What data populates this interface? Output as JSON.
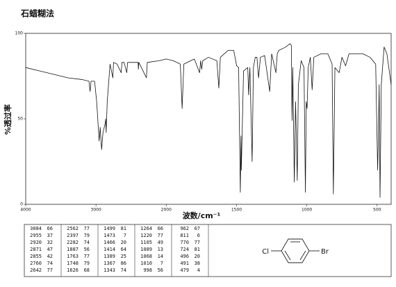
{
  "chart_data": {
    "type": "line",
    "title": "石蜡糊法",
    "x_label": "波数/cm⁻¹",
    "y_label": "%透过率",
    "xlim": [
      4000,
      400
    ],
    "xticks": [
      4000,
      3000,
      2000,
      1500,
      1000,
      500
    ],
    "ylim": [
      0,
      100
    ],
    "yticks": [
      0,
      50,
      100
    ],
    "color": "#111111",
    "x": [
      4000,
      3800,
      3600,
      3400,
      3200,
      3100,
      3084,
      3070,
      3020,
      2990,
      2955,
      2940,
      2920,
      2900,
      2871,
      2862,
      2855,
      2840,
      2800,
      2760,
      2750,
      2700,
      2642,
      2630,
      2600,
      2562,
      2550,
      2500,
      2400,
      2397,
      2390,
      2282,
      2270,
      2100,
      2000,
      1950,
      1900,
      1887,
      1875,
      1800,
      1763,
      1755,
      1748,
      1740,
      1700,
      1640,
      1626,
      1615,
      1560,
      1520,
      1499,
      1485,
      1473,
      1468,
      1466,
      1450,
      1420,
      1414,
      1405,
      1389,
      1380,
      1367,
      1355,
      1343,
      1330,
      1300,
      1264,
      1250,
      1220,
      1210,
      1200,
      1150,
      1120,
      1110,
      1105,
      1100,
      1089,
      1080,
      1068,
      1060,
      1040,
      1020,
      1010,
      1004,
      998,
      990,
      975,
      962,
      950,
      900,
      850,
      820,
      811,
      800,
      770,
      750,
      724,
      700,
      600,
      550,
      510,
      496,
      491,
      485,
      479,
      470,
      450,
      430,
      400
    ],
    "values": [
      80,
      78,
      76,
      74,
      73,
      72,
      66,
      72,
      72,
      60,
      37,
      45,
      32,
      42,
      47,
      50,
      42,
      60,
      82,
      74,
      83,
      82,
      77,
      83,
      83,
      77,
      83,
      83,
      83,
      79,
      83,
      74,
      83,
      84,
      85,
      84,
      82,
      56,
      82,
      85,
      77,
      84,
      79,
      84,
      86,
      84,
      68,
      86,
      90,
      90,
      81,
      80,
      7,
      40,
      20,
      78,
      80,
      64,
      80,
      25,
      80,
      86,
      86,
      74,
      86,
      87,
      66,
      88,
      77,
      88,
      90,
      92,
      94,
      93,
      49,
      80,
      13,
      60,
      14,
      70,
      84,
      80,
      7,
      60,
      56,
      80,
      86,
      67,
      86,
      88,
      88,
      82,
      6,
      80,
      77,
      86,
      81,
      88,
      88,
      86,
      82,
      20,
      38,
      70,
      4,
      70,
      92,
      88,
      70
    ]
  },
  "peak_table": [
    [
      [
        3084,
        66
      ],
      [
        2955,
        37
      ],
      [
        2920,
        32
      ],
      [
        2871,
        47
      ],
      [
        2855,
        42
      ],
      [
        2760,
        74
      ],
      [
        2642,
        77
      ]
    ],
    [
      [
        2562,
        77
      ],
      [
        2397,
        79
      ],
      [
        2282,
        74
      ],
      [
        1887,
        56
      ],
      [
        1763,
        77
      ],
      [
        1748,
        79
      ],
      [
        1626,
        68
      ]
    ],
    [
      [
        1499,
        81
      ],
      [
        1473,
        7
      ],
      [
        1466,
        20
      ],
      [
        1414,
        64
      ],
      [
        1389,
        25
      ],
      [
        1367,
        86
      ],
      [
        1343,
        74
      ]
    ],
    [
      [
        1264,
        66
      ],
      [
        1220,
        77
      ],
      [
        1105,
        49
      ],
      [
        1089,
        13
      ],
      [
        1068,
        14
      ],
      [
        1010,
        7
      ],
      [
        998,
        56
      ]
    ],
    [
      [
        962,
        67
      ],
      [
        811,
        6
      ],
      [
        770,
        77
      ],
      [
        724,
        81
      ],
      [
        496,
        20
      ],
      [
        491,
        38
      ],
      [
        479,
        4
      ]
    ]
  ],
  "structure": {
    "left": "Cl",
    "right": "Br"
  }
}
